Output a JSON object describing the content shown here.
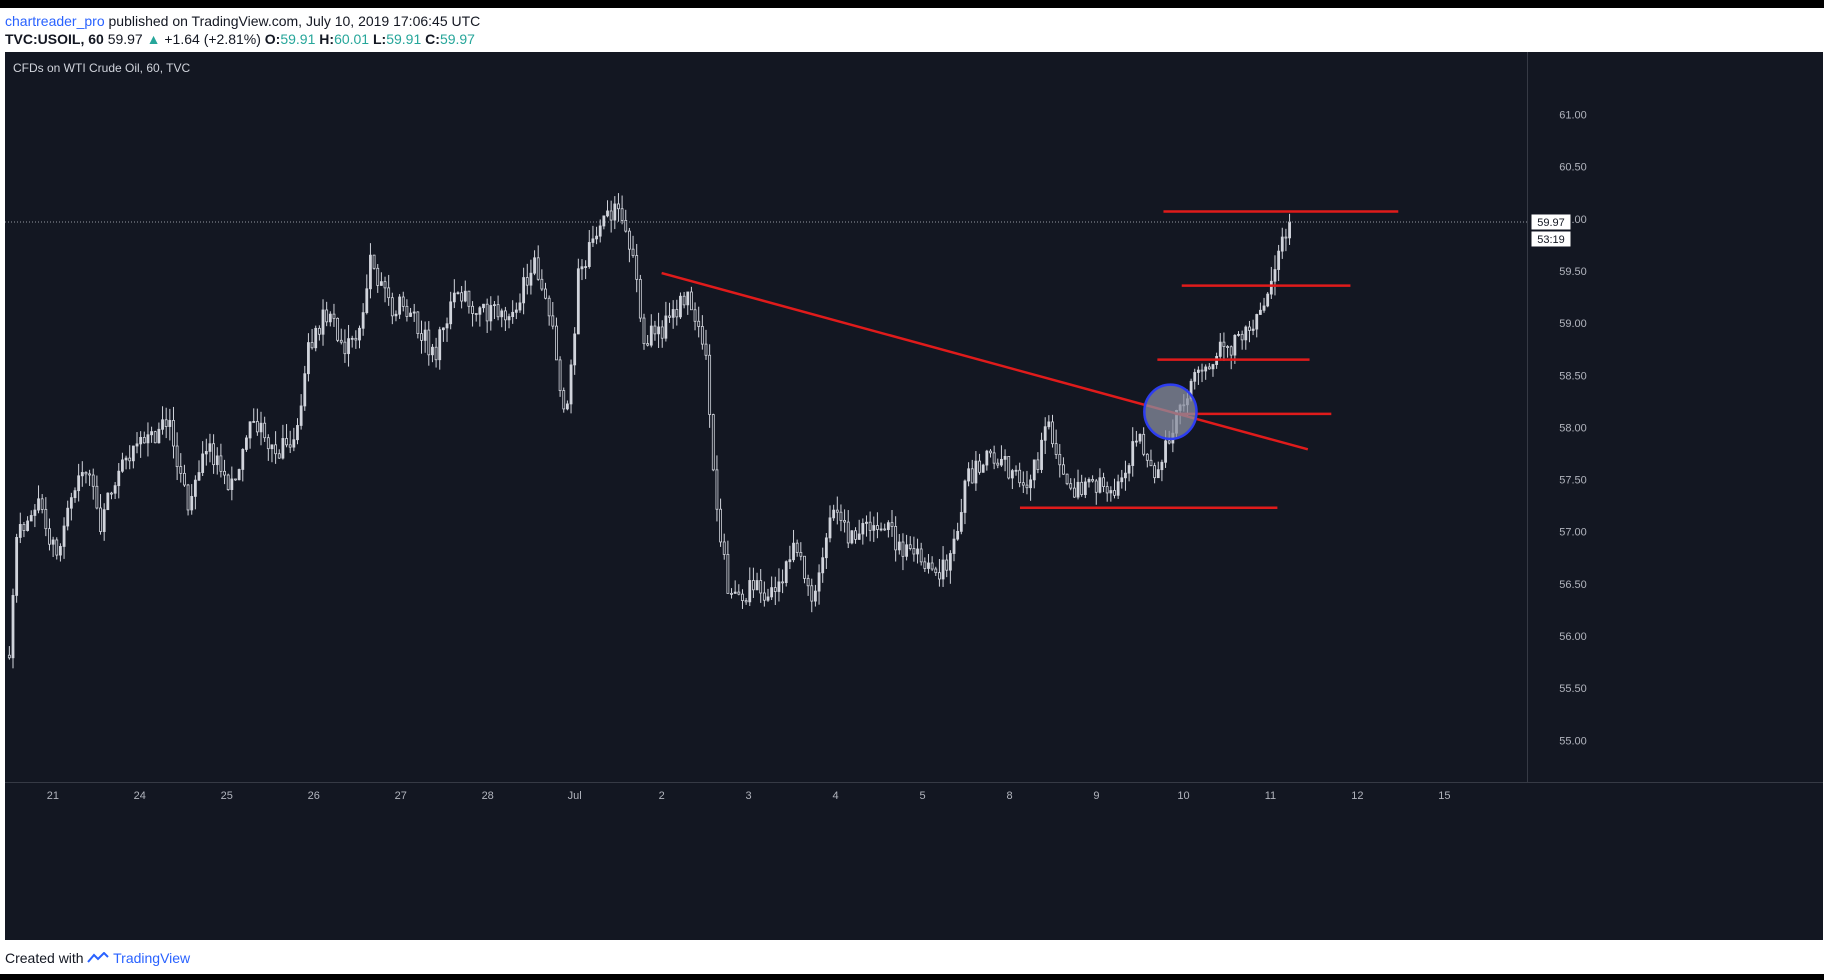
{
  "header": {
    "author": "chartreader_pro",
    "published": "published on TradingView.com, July 10, 2019 17:06:45 UTC",
    "symbol_line": {
      "symbol": "TVC:USOIL, 60",
      "last": "59.97",
      "change": "+1.64 (+2.81%)",
      "o_label": "O:",
      "o_value": "59.91",
      "h_label": "H:",
      "h_value": "60.01",
      "l_label": "L:",
      "l_value": "59.91",
      "c_label": "C:",
      "c_value": "59.97"
    }
  },
  "footer": {
    "prefix": "Created with",
    "brand": "TradingView"
  },
  "colors": {
    "background": "#131722",
    "candle": "#d1d4dc",
    "drawing_line": "#e01b1b",
    "ellipse_stroke": "#2d3df0",
    "ellipse_fill": "#8a8fa0",
    "up": "#26a69a"
  },
  "chart_data": {
    "type": "candlestick",
    "title": "CFDs on WTI Crude Oil, 60, TVC",
    "ylim": [
      54.6,
      61.6
    ],
    "y_ticks": [
      "55.00",
      "55.50",
      "56.00",
      "56.50",
      "57.00",
      "57.50",
      "58.00",
      "58.50",
      "59.00",
      "59.50",
      "60.00",
      "60.50",
      "61.00"
    ],
    "last_price_label": "59.97",
    "countdown_label": "53:19",
    "x_labels": [
      {
        "label": "21",
        "t": 0.5
      },
      {
        "label": "24",
        "t": 1.5
      },
      {
        "label": "25",
        "t": 2.5
      },
      {
        "label": "26",
        "t": 3.5
      },
      {
        "label": "27",
        "t": 4.5
      },
      {
        "label": "28",
        "t": 5.5
      },
      {
        "label": "Jul",
        "t": 6.5
      },
      {
        "label": "2",
        "t": 7.5
      },
      {
        "label": "3",
        "t": 8.5
      },
      {
        "label": "4",
        "t": 9.5
      },
      {
        "label": "5",
        "t": 10.5
      },
      {
        "label": "8",
        "t": 11.5
      },
      {
        "label": "9",
        "t": 12.5
      },
      {
        "label": "10",
        "t": 13.5
      },
      {
        "label": "11",
        "t": 14.5
      },
      {
        "label": "12",
        "t": 15.5
      },
      {
        "label": "15",
        "t": 16.5
      }
    ],
    "x_range": [
      -0.05,
      17.45
    ],
    "price_path": [
      [
        0.0,
        55.8
      ],
      [
        0.08,
        57.0
      ],
      [
        0.3,
        57.3
      ],
      [
        0.55,
        56.8
      ],
      [
        0.85,
        57.7
      ],
      [
        1.05,
        57.1
      ],
      [
        1.3,
        57.6
      ],
      [
        1.6,
        57.9
      ],
      [
        1.85,
        58.0
      ],
      [
        2.05,
        57.3
      ],
      [
        2.3,
        57.8
      ],
      [
        2.55,
        57.4
      ],
      [
        2.8,
        58.1
      ],
      [
        3.05,
        57.7
      ],
      [
        3.3,
        58.0
      ],
      [
        3.45,
        58.8
      ],
      [
        3.65,
        59.1
      ],
      [
        3.85,
        58.8
      ],
      [
        4.05,
        59.0
      ],
      [
        4.15,
        59.6
      ],
      [
        4.35,
        59.2
      ],
      [
        4.6,
        59.1
      ],
      [
        4.9,
        58.7
      ],
      [
        5.1,
        59.3
      ],
      [
        5.4,
        59.1
      ],
      [
        5.75,
        59.1
      ],
      [
        6.05,
        59.6
      ],
      [
        6.25,
        59.0
      ],
      [
        6.4,
        58.0
      ],
      [
        6.55,
        59.5
      ],
      [
        6.75,
        59.9
      ],
      [
        6.95,
        60.1
      ],
      [
        7.15,
        59.7
      ],
      [
        7.3,
        58.8
      ],
      [
        7.55,
        59.0
      ],
      [
        7.8,
        59.3
      ],
      [
        8.0,
        58.8
      ],
      [
        8.15,
        57.0
      ],
      [
        8.3,
        56.3
      ],
      [
        8.55,
        56.5
      ],
      [
        8.8,
        56.4
      ],
      [
        9.05,
        56.9
      ],
      [
        9.25,
        56.3
      ],
      [
        9.45,
        57.3
      ],
      [
        9.7,
        56.9
      ],
      [
        10.0,
        57.1
      ],
      [
        10.3,
        56.8
      ],
      [
        10.6,
        56.7
      ],
      [
        10.8,
        56.6
      ],
      [
        11.0,
        57.5
      ],
      [
        11.2,
        57.7
      ],
      [
        11.5,
        57.6
      ],
      [
        11.75,
        57.5
      ],
      [
        11.95,
        58.0
      ],
      [
        12.15,
        57.4
      ],
      [
        12.45,
        57.5
      ],
      [
        12.75,
        57.4
      ],
      [
        12.95,
        57.9
      ],
      [
        13.15,
        57.6
      ],
      [
        13.35,
        57.9
      ],
      [
        13.5,
        58.3
      ],
      [
        13.7,
        58.6
      ],
      [
        13.9,
        58.7
      ],
      [
        14.1,
        58.8
      ],
      [
        14.3,
        59.0
      ],
      [
        14.5,
        59.4
      ],
      [
        14.62,
        59.7
      ],
      [
        14.72,
        59.97
      ]
    ],
    "drawings": {
      "descending_trendline": [
        [
          7.5,
          59.48
        ],
        [
          14.93,
          57.79
        ]
      ],
      "horizontal_levels": [
        {
          "x": [
            11.62,
            14.58
          ],
          "y": 57.23
        },
        {
          "x": [
            13.4,
            15.2
          ],
          "y": 58.13
        },
        {
          "x": [
            13.2,
            14.95
          ],
          "y": 58.65
        },
        {
          "x": [
            13.48,
            15.42
          ],
          "y": 59.36
        },
        {
          "x": [
            13.27,
            15.97
          ],
          "y": 60.07
        }
      ],
      "breakout_ellipse": {
        "cx": 13.35,
        "cy": 58.15,
        "rx": 0.3,
        "ry": 0.26
      }
    }
  }
}
